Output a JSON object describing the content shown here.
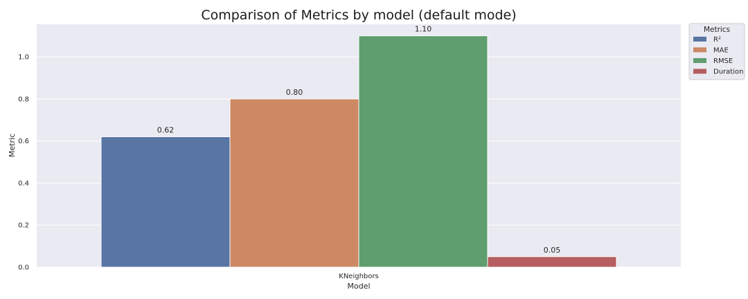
{
  "chart_data": {
    "type": "bar",
    "title": "Comparison of Metrics by model (default mode)",
    "xlabel": "Model",
    "ylabel": "Metric",
    "categories": [
      "KNeighbors"
    ],
    "ylim": [
      0,
      1.155
    ],
    "yticks": [
      0.0,
      0.2,
      0.4,
      0.6,
      0.8,
      1.0
    ],
    "ytick_labels": [
      "0.0",
      "0.2",
      "0.4",
      "0.6",
      "0.8",
      "1.0"
    ],
    "grid": true,
    "legend": {
      "title": "Metrics",
      "placement": "outside-top-right"
    },
    "series": [
      {
        "name": "R²",
        "values": [
          0.62
        ],
        "label": "0.62",
        "color": "#5975a4"
      },
      {
        "name": "MAE",
        "values": [
          0.8
        ],
        "label": "0.80",
        "color": "#cc8963"
      },
      {
        "name": "RMSE",
        "values": [
          1.1
        ],
        "label": "1.10",
        "color": "#5f9e6e"
      },
      {
        "name": "Duration",
        "values": [
          0.05
        ],
        "label": "0.05",
        "color": "#b55d60"
      }
    ],
    "plot_background": "#eaeaf2",
    "grid_color": "#ffffff"
  }
}
